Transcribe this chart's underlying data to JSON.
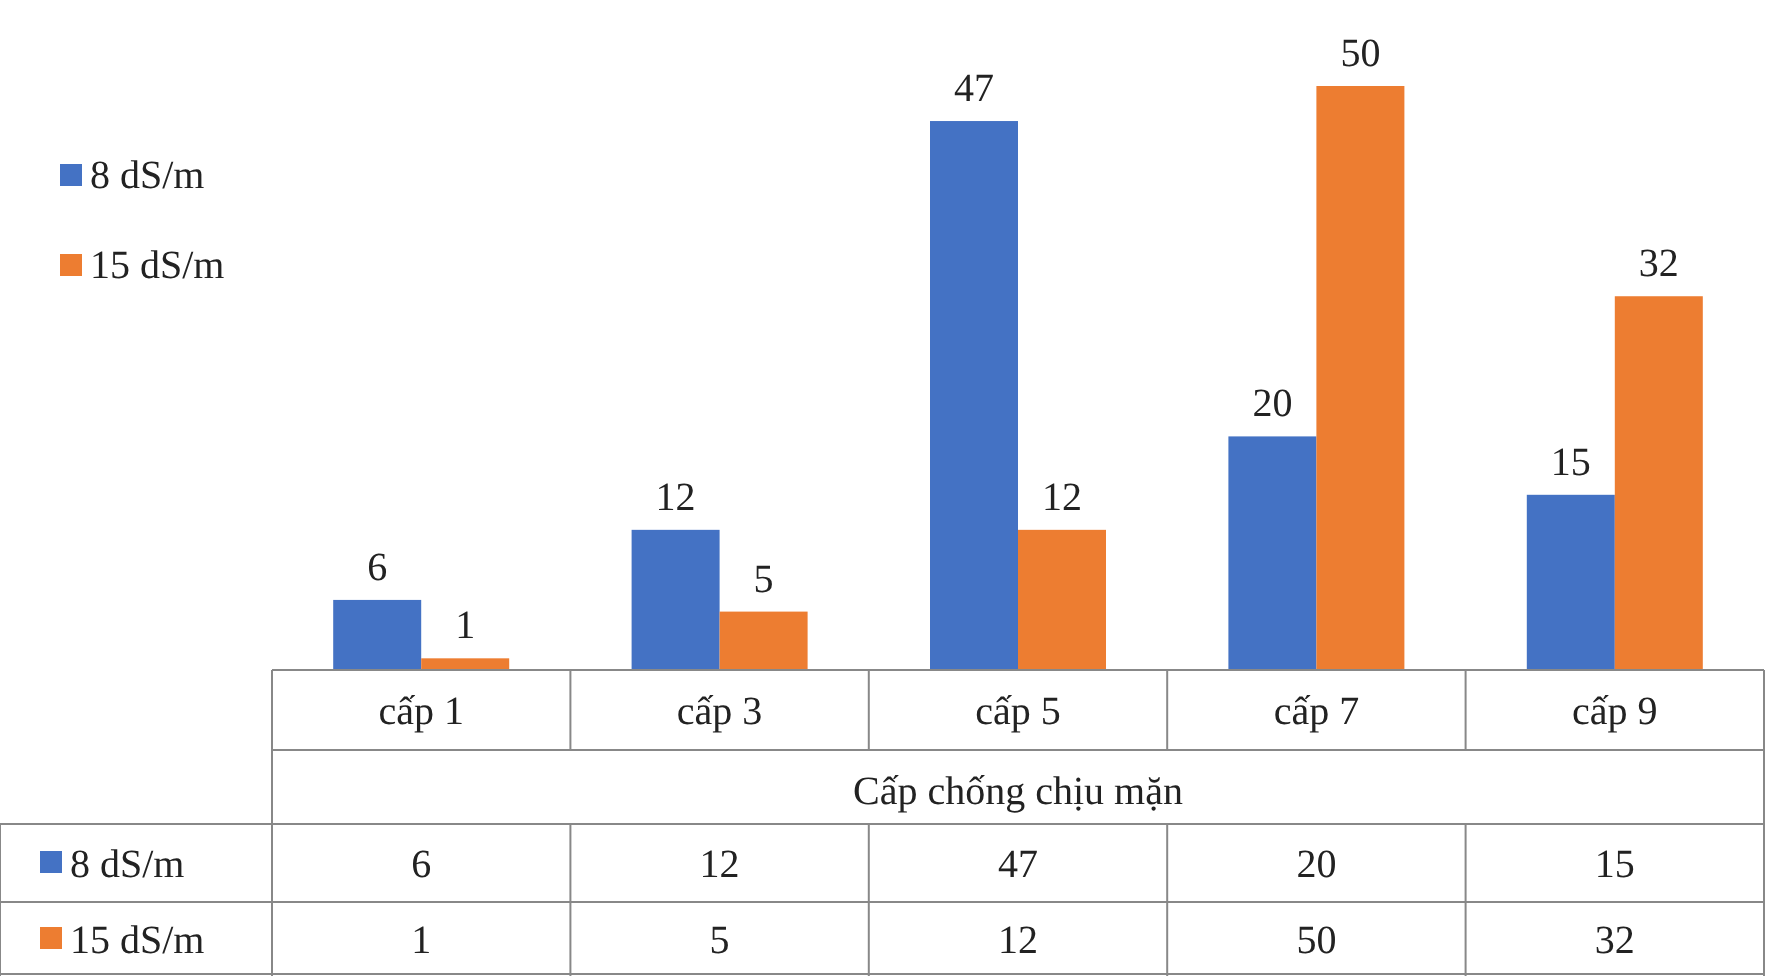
{
  "chart_data": [
    {
      "type": "bar",
      "xlabel": "Cấp chống chịu mặn",
      "categories": [
        "cấp 1",
        "cấp 3",
        "cấp 5",
        "cấp 7",
        "cấp 9"
      ],
      "series": [
        {
          "name": "8 dS/m",
          "color": "#4472c4",
          "values": [
            6,
            12,
            47,
            20,
            15
          ],
          "value_labels": [
            "6",
            "12",
            "47",
            "20",
            "15"
          ]
        },
        {
          "name": "15 dS/m",
          "color": "#ed7d31",
          "values": [
            1,
            5,
            12,
            50,
            32
          ],
          "value_labels": [
            "1",
            "5",
            "12",
            "50",
            "32"
          ]
        }
      ],
      "legend": "top left",
      "grid": false
    },
    {
      "type": "other",
      "annotations": [
        "8 dS/m",
        "6",
        "12",
        "47",
        "20",
        "15",
        "15 dS/m",
        "1",
        "5",
        "12",
        "50",
        "32"
      ]
    }
  ]
}
